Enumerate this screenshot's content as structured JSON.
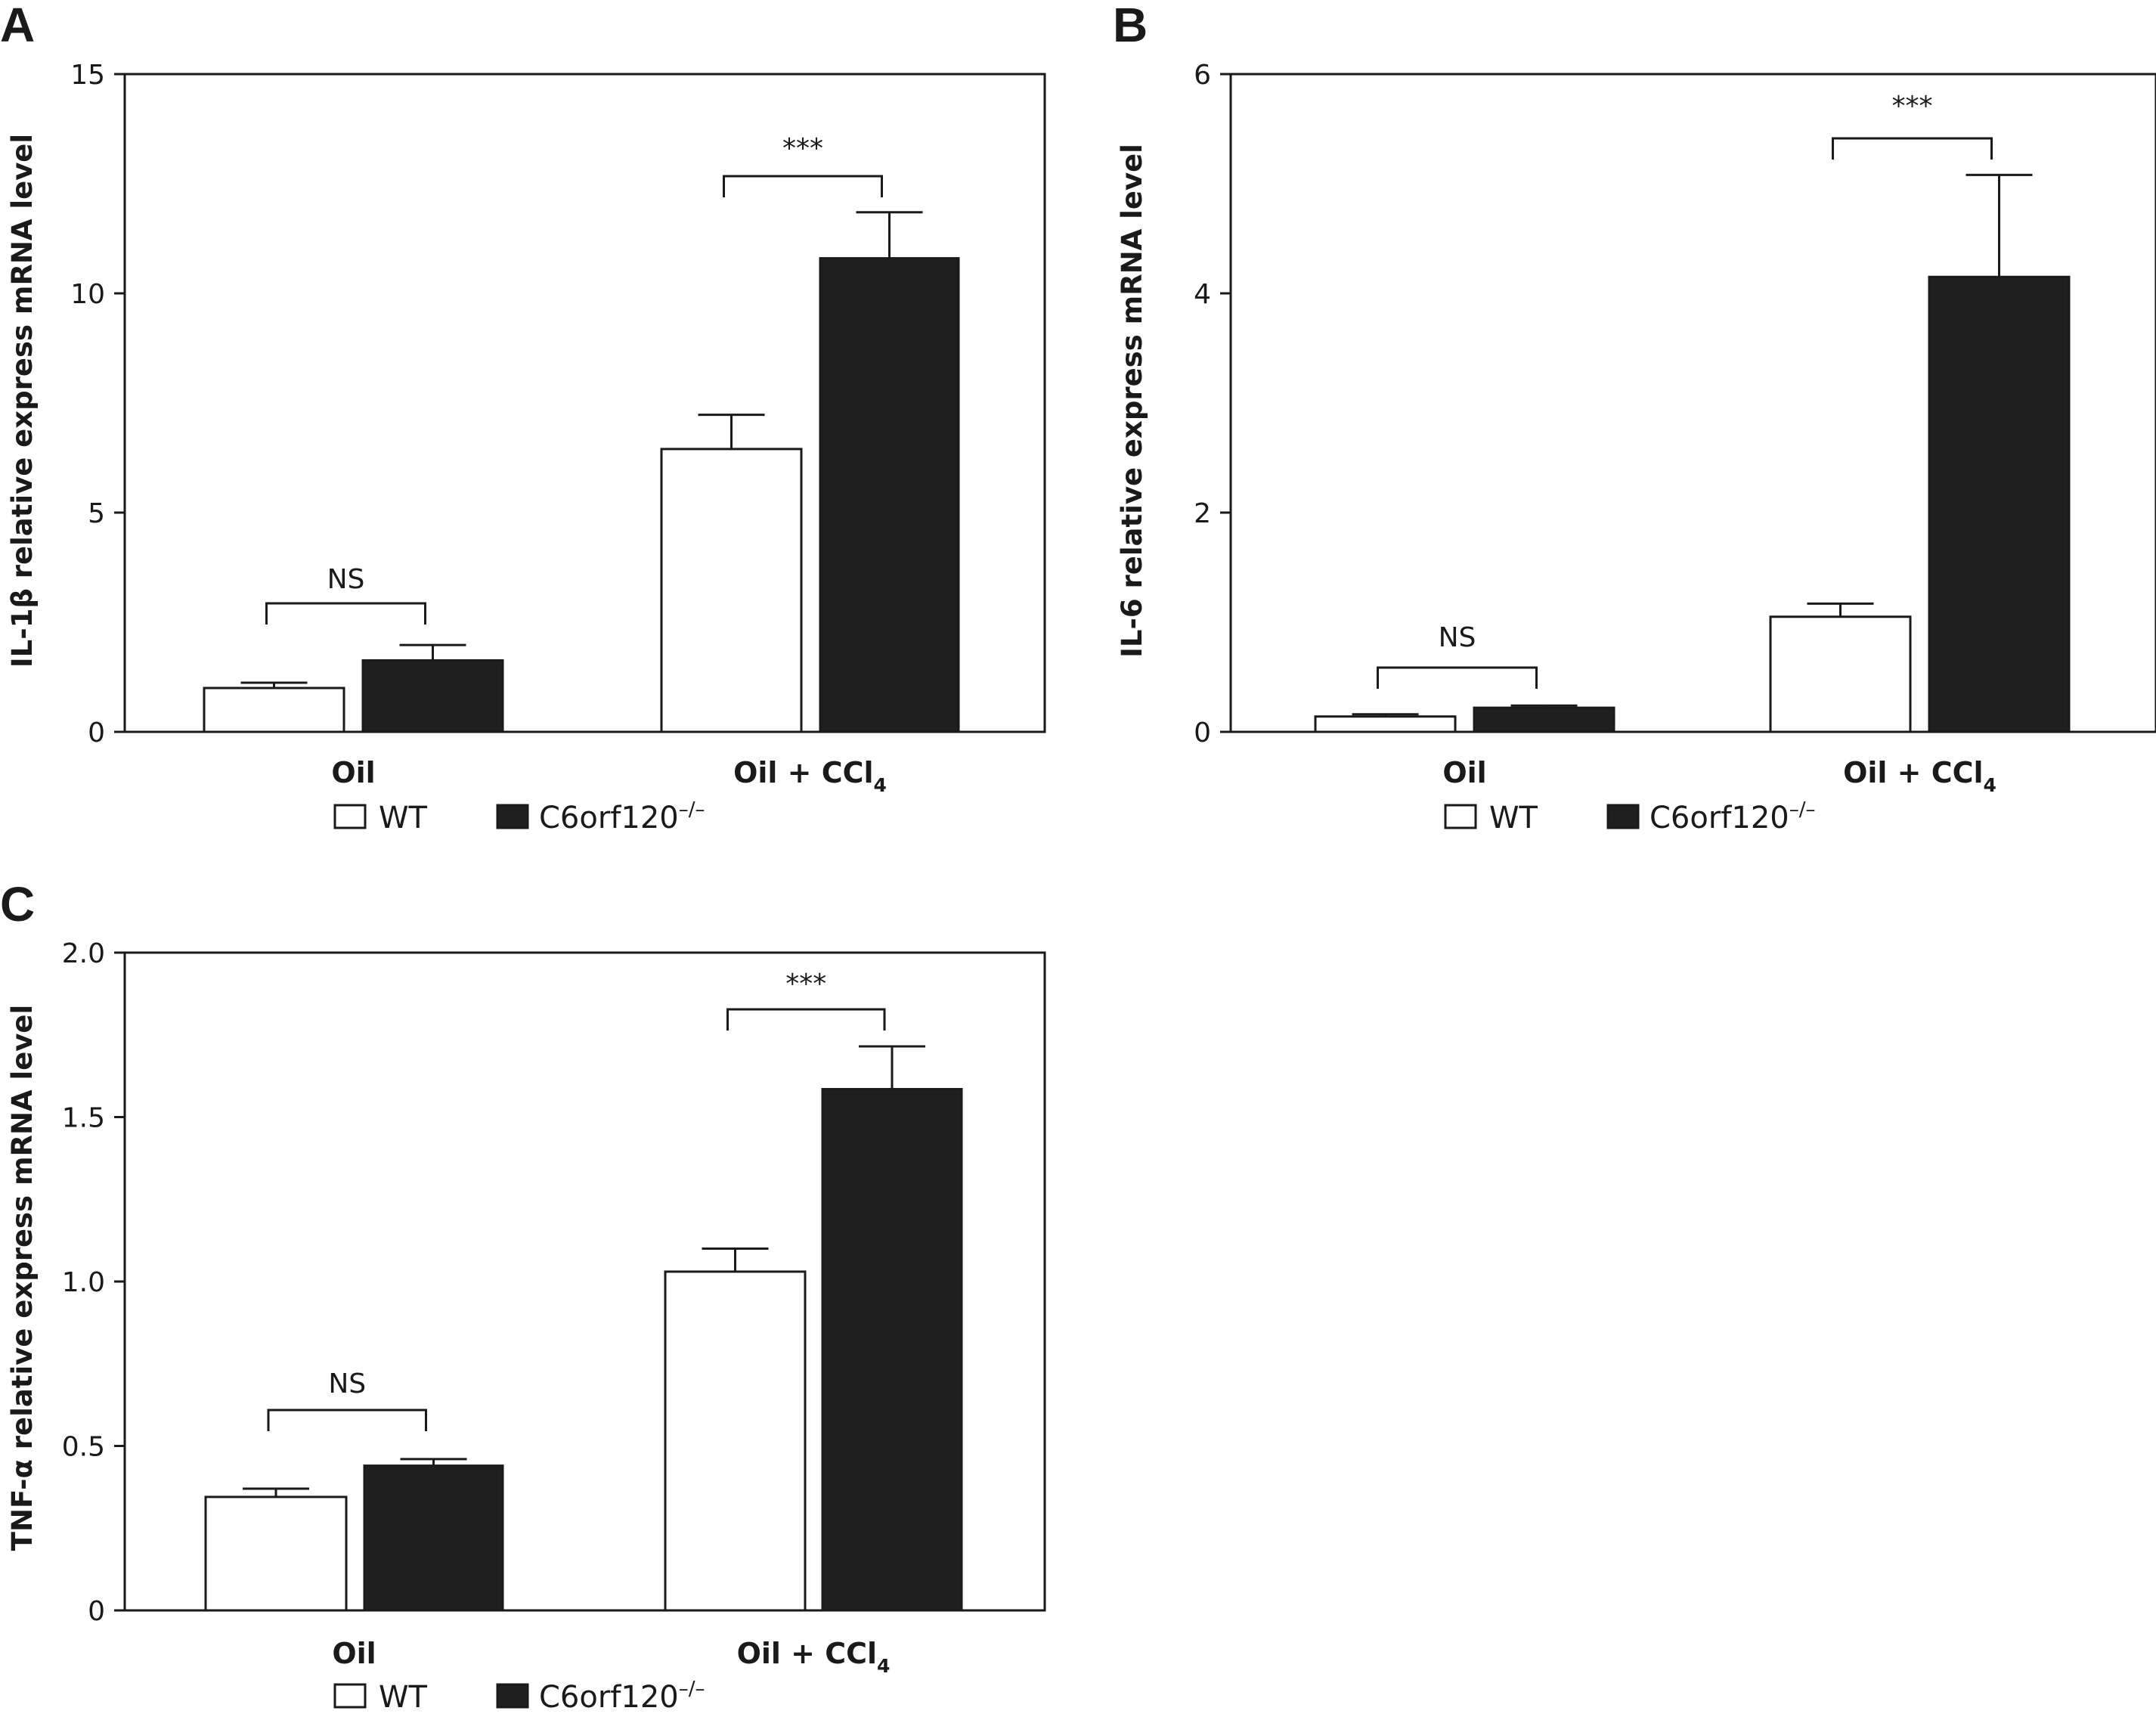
{
  "chart_data": [
    {
      "type": "bar",
      "panel": "A",
      "ylabel": "IL-1β relative express mRNA level",
      "ylim": [
        0,
        15
      ],
      "yticks": [
        "0",
        "5",
        "10",
        "15"
      ],
      "categories": [
        {
          "label": "Oil",
          "sub": ""
        },
        {
          "label": "Oil + CCl",
          "sub": "4"
        }
      ],
      "series": [
        {
          "name": "WT",
          "values": [
            1.0,
            6.45
          ],
          "errors": [
            0.12,
            0.78
          ]
        },
        {
          "name": "C6orf120",
          "values": [
            1.63,
            10.8
          ],
          "errors": [
            0.35,
            1.05
          ]
        }
      ],
      "significance": [
        "NS",
        "***"
      ]
    },
    {
      "type": "bar",
      "panel": "B",
      "ylabel": "IL-6 relative express mRNA level",
      "ylim": [
        0,
        6
      ],
      "yticks": [
        "0",
        "2",
        "4",
        "6"
      ],
      "categories": [
        {
          "label": "Oil",
          "sub": ""
        },
        {
          "label": "Oil + CCl",
          "sub": "4"
        }
      ],
      "series": [
        {
          "name": "WT",
          "values": [
            0.14,
            1.05
          ],
          "errors": [
            0.02,
            0.12
          ]
        },
        {
          "name": "C6orf120",
          "values": [
            0.22,
            4.15
          ],
          "errors": [
            0.02,
            0.93
          ]
        }
      ],
      "significance": [
        "NS",
        "***"
      ]
    },
    {
      "type": "bar",
      "panel": "C",
      "ylabel": "TNF-α relative express mRNA level",
      "ylim": [
        0,
        2.0
      ],
      "yticks": [
        "0",
        "0.5",
        "1.0",
        "1.5",
        "2.0"
      ],
      "categories": [
        {
          "label": "Oil",
          "sub": ""
        },
        {
          "label": "Oil + CCl",
          "sub": "4"
        }
      ],
      "series": [
        {
          "name": "WT",
          "values": [
            0.345,
            1.03
          ],
          "errors": [
            0.025,
            0.07
          ]
        },
        {
          "name": "C6orf120",
          "values": [
            0.44,
            1.585
          ],
          "errors": [
            0.02,
            0.13
          ]
        }
      ],
      "significance": [
        "NS",
        "***"
      ]
    }
  ],
  "legend": {
    "wt": "WT",
    "ko": "C6orf120",
    "ko_sup": "–/–"
  },
  "colors": {
    "wt_fill": "#ffffff",
    "ko_fill": "#1f1f1f",
    "line": "#1a1a1a"
  }
}
